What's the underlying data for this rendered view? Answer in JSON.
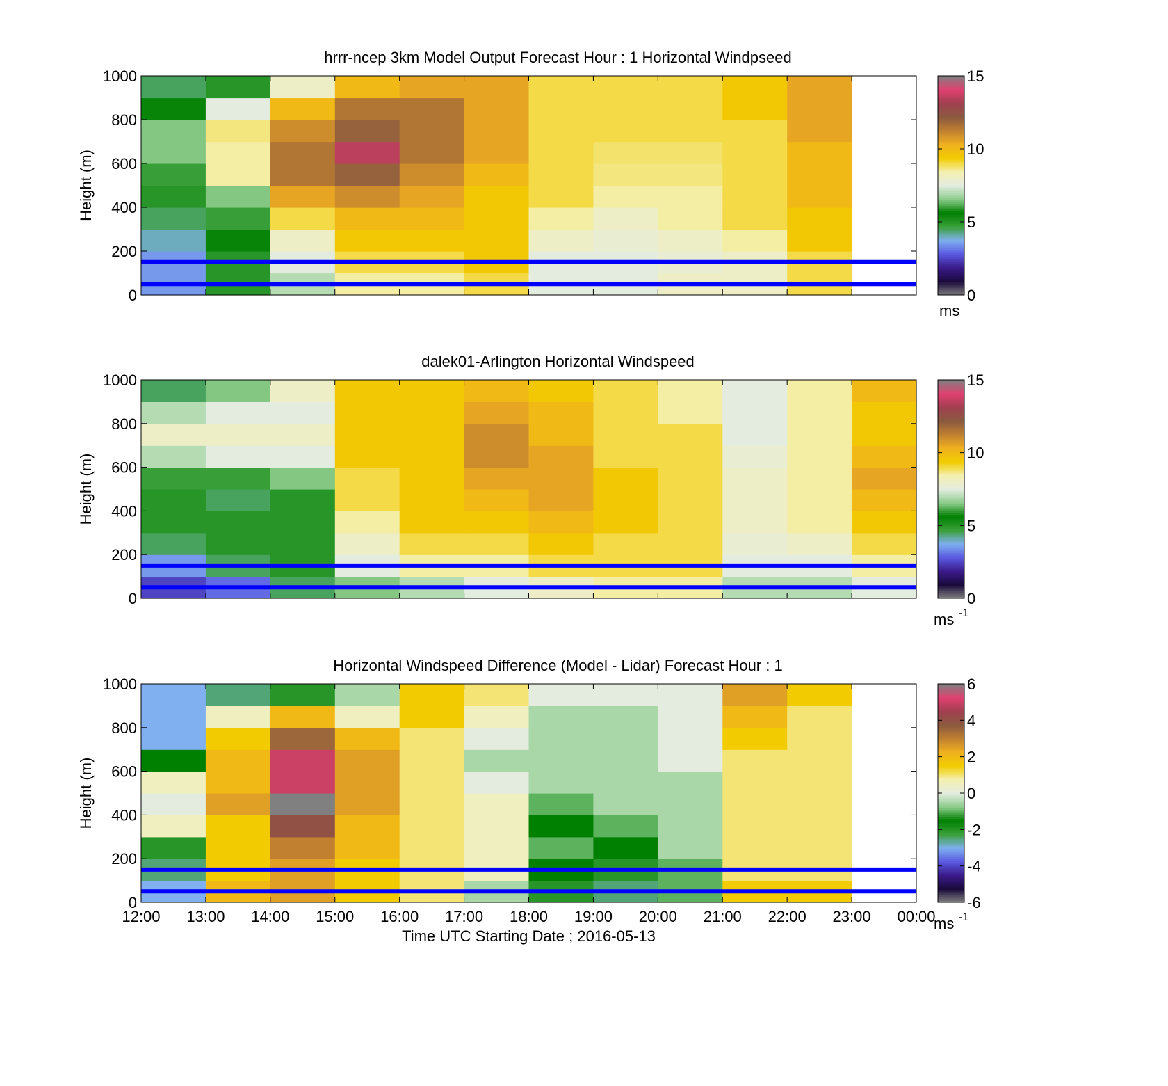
{
  "figure": {
    "xlabel": "Time UTC  Starting Date ; 2016-05-13",
    "x_tick_labels": [
      "12:00",
      "13:00",
      "14:00",
      "15:00",
      "16:00",
      "17:00",
      "18:00",
      "19:00",
      "20:00",
      "21:00",
      "22:00",
      "23:00",
      "00:00"
    ],
    "ylabel": "Height (m)",
    "y_tick_labels": [
      "0",
      "200",
      "400",
      "600",
      "800",
      "1000"
    ],
    "reference_lines_m": [
      50,
      150
    ],
    "reference_line_color": "#0000ff",
    "colormap": [
      "#808080",
      "#1a0a3c",
      "#3a1a8a",
      "#5a5ae0",
      "#80b0f0",
      "#3aa03a",
      "#008000",
      "#8ccc8c",
      "#e4ece0",
      "#f4f0b0",
      "#f2cc00",
      "#efb020",
      "#c08030",
      "#8a5a40",
      "#a04050",
      "#e04070",
      "#808080"
    ]
  },
  "chart_data": [
    {
      "type": "heatmap",
      "title": "hrrr-ncep 3km Model Output   Forecast Hour : 1 Horizontal Windpseed",
      "xlabel": "",
      "ylabel": "Height (m)",
      "x_range": [
        "12:00",
        "00:00"
      ],
      "ylim": [
        0,
        1000
      ],
      "clim": [
        0,
        15
      ],
      "colorbar_ticks": [
        "0",
        "5",
        "10",
        "15"
      ],
      "colorbar_unit": "ms",
      "colorbar_unit_sup": "",
      "x": [
        "12:00",
        "13:00",
        "14:00",
        "15:00",
        "16:00",
        "17:00",
        "18:00",
        "19:00",
        "20:00",
        "21:00",
        "22:00"
      ],
      "heights_m": [
        50,
        150,
        250,
        350,
        450,
        550,
        650,
        750,
        850,
        950
      ],
      "values": [
        [
          3.5,
          5.0,
          7.0,
          8.5,
          8.5,
          9.0,
          7.5,
          7.5,
          8.0,
          8.0,
          9.0
        ],
        [
          3.5,
          5.0,
          7.5,
          9.0,
          9.0,
          9.5,
          7.5,
          7.5,
          7.8,
          8.0,
          9.0
        ],
        [
          4.0,
          5.5,
          8.0,
          9.5,
          9.5,
          9.5,
          8.0,
          7.8,
          8.0,
          8.5,
          9.5
        ],
        [
          4.5,
          6.0,
          9.0,
          10.0,
          10.0,
          9.5,
          8.5,
          8.0,
          8.5,
          9.0,
          9.5
        ],
        [
          5.0,
          6.5,
          10.5,
          11.0,
          10.5,
          9.5,
          9.0,
          8.5,
          8.5,
          9.0,
          10.0
        ],
        [
          6.0,
          8.5,
          11.5,
          12.0,
          11.0,
          10.0,
          9.0,
          8.7,
          8.7,
          9.0,
          10.0
        ],
        [
          6.5,
          8.5,
          11.5,
          13.5,
          11.5,
          10.5,
          9.0,
          8.8,
          8.8,
          9.0,
          10.0
        ],
        [
          6.5,
          8.7,
          11.0,
          12.0,
          11.5,
          10.5,
          9.0,
          9.0,
          9.0,
          9.0,
          10.5
        ],
        [
          5.5,
          7.5,
          10.0,
          11.5,
          11.5,
          10.5,
          9.0,
          9.0,
          9.0,
          9.5,
          10.5
        ],
        [
          4.5,
          5.0,
          8.0,
          10.0,
          10.5,
          10.5,
          9.0,
          9.0,
          9.0,
          9.5,
          10.5
        ]
      ]
    },
    {
      "type": "heatmap",
      "title": "dalek01-Arlington  Horizontal Windspeed",
      "xlabel": "",
      "ylabel": "Height (m)",
      "x_range": [
        "12:00",
        "00:00"
      ],
      "ylim": [
        0,
        1000
      ],
      "clim": [
        0,
        15
      ],
      "colorbar_ticks": [
        "0",
        "5",
        "10",
        "15"
      ],
      "colorbar_unit": "ms",
      "colorbar_unit_sup": "-1",
      "x": [
        "12:00",
        "13:00",
        "14:00",
        "15:00",
        "16:00",
        "17:00",
        "18:00",
        "19:00",
        "20:00",
        "21:00",
        "22:00",
        "23:00"
      ],
      "heights_m": [
        50,
        150,
        250,
        350,
        450,
        550,
        650,
        750,
        850,
        950
      ],
      "values": [
        [
          2.5,
          3.0,
          4.5,
          6.5,
          7.0,
          7.5,
          8.0,
          8.5,
          8.5,
          7.0,
          7.0,
          7.5
        ],
        [
          3.5,
          4.5,
          5.0,
          7.5,
          8.5,
          8.5,
          9.0,
          9.0,
          9.0,
          7.5,
          7.5,
          8.5
        ],
        [
          4.5,
          5.0,
          5.0,
          8.0,
          9.0,
          9.0,
          9.5,
          9.0,
          9.0,
          7.8,
          8.0,
          9.0
        ],
        [
          5.0,
          5.0,
          5.0,
          8.5,
          9.5,
          9.5,
          10.0,
          9.5,
          9.0,
          8.0,
          8.5,
          9.5
        ],
        [
          5.0,
          4.5,
          5.0,
          9.0,
          9.5,
          10.0,
          10.5,
          9.5,
          9.0,
          8.0,
          8.5,
          10.0
        ],
        [
          6.0,
          6.0,
          6.5,
          9.0,
          9.5,
          10.5,
          10.5,
          9.5,
          9.0,
          8.0,
          8.5,
          10.5
        ],
        [
          7.0,
          7.5,
          7.5,
          9.5,
          9.5,
          11.0,
          10.5,
          9.0,
          9.0,
          7.8,
          8.5,
          10.0
        ],
        [
          8.0,
          8.0,
          8.0,
          9.5,
          9.5,
          11.0,
          10.0,
          9.0,
          9.0,
          7.5,
          8.5,
          9.5
        ],
        [
          7.0,
          7.5,
          7.5,
          9.5,
          9.5,
          10.5,
          10.0,
          9.0,
          8.5,
          7.5,
          8.5,
          9.5
        ],
        [
          4.5,
          6.5,
          8.0,
          9.5,
          9.5,
          10.0,
          9.5,
          9.0,
          8.5,
          7.5,
          8.5,
          10.0
        ]
      ]
    },
    {
      "type": "heatmap",
      "title": "Horizontal Windspeed Difference (Model - Lidar) Forecast Hour : 1",
      "xlabel": "Time UTC  Starting Date ; 2016-05-13",
      "ylabel": "Height (m)",
      "x_range": [
        "12:00",
        "00:00"
      ],
      "ylim": [
        0,
        1000
      ],
      "clim": [
        -6,
        6
      ],
      "colorbar_ticks": [
        "-6",
        "-4",
        "-2",
        "0",
        "2",
        "4",
        "6"
      ],
      "colorbar_unit": "ms",
      "colorbar_unit_sup": "-1",
      "x": [
        "12:00",
        "13:00",
        "14:00",
        "15:00",
        "16:00",
        "17:00",
        "18:00",
        "19:00",
        "20:00",
        "21:00",
        "22:00"
      ],
      "heights_m": [
        50,
        150,
        250,
        350,
        450,
        550,
        650,
        750,
        850,
        950
      ],
      "values": [
        [
          -3.0,
          2.0,
          2.5,
          1.5,
          1.0,
          -0.5,
          -2.0,
          -2.5,
          -1.0,
          1.5,
          1.5
        ],
        [
          -2.5,
          1.5,
          2.5,
          1.5,
          1.0,
          0.5,
          -1.5,
          -2.0,
          -1.0,
          1.0,
          1.0
        ],
        [
          -2.0,
          1.5,
          3.0,
          2.0,
          1.0,
          0.5,
          -1.0,
          -1.5,
          -0.5,
          1.0,
          1.0
        ],
        [
          0.5,
          1.5,
          4.0,
          2.0,
          1.0,
          0.5,
          -1.5,
          -1.0,
          -0.5,
          1.0,
          1.0
        ],
        [
          0.0,
          2.5,
          6.0,
          2.5,
          1.0,
          0.5,
          -1.0,
          -0.5,
          -0.5,
          1.0,
          1.0
        ],
        [
          0.5,
          2.0,
          5.0,
          2.5,
          1.0,
          0.0,
          -0.5,
          -0.5,
          -0.5,
          1.0,
          1.0
        ],
        [
          -1.5,
          2.0,
          5.0,
          2.5,
          1.0,
          -0.5,
          -0.5,
          -0.5,
          0.0,
          1.0,
          1.0
        ],
        [
          -3.0,
          1.5,
          3.5,
          2.0,
          1.0,
          0.0,
          -0.5,
          -0.5,
          0.0,
          1.5,
          1.0
        ],
        [
          -3.0,
          0.5,
          2.0,
          0.5,
          1.5,
          0.5,
          -0.5,
          -0.5,
          0.0,
          2.0,
          1.0
        ],
        [
          -3.0,
          -2.5,
          -2.0,
          -0.5,
          1.5,
          1.0,
          0.0,
          0.0,
          0.0,
          2.5,
          1.5
        ]
      ]
    }
  ]
}
